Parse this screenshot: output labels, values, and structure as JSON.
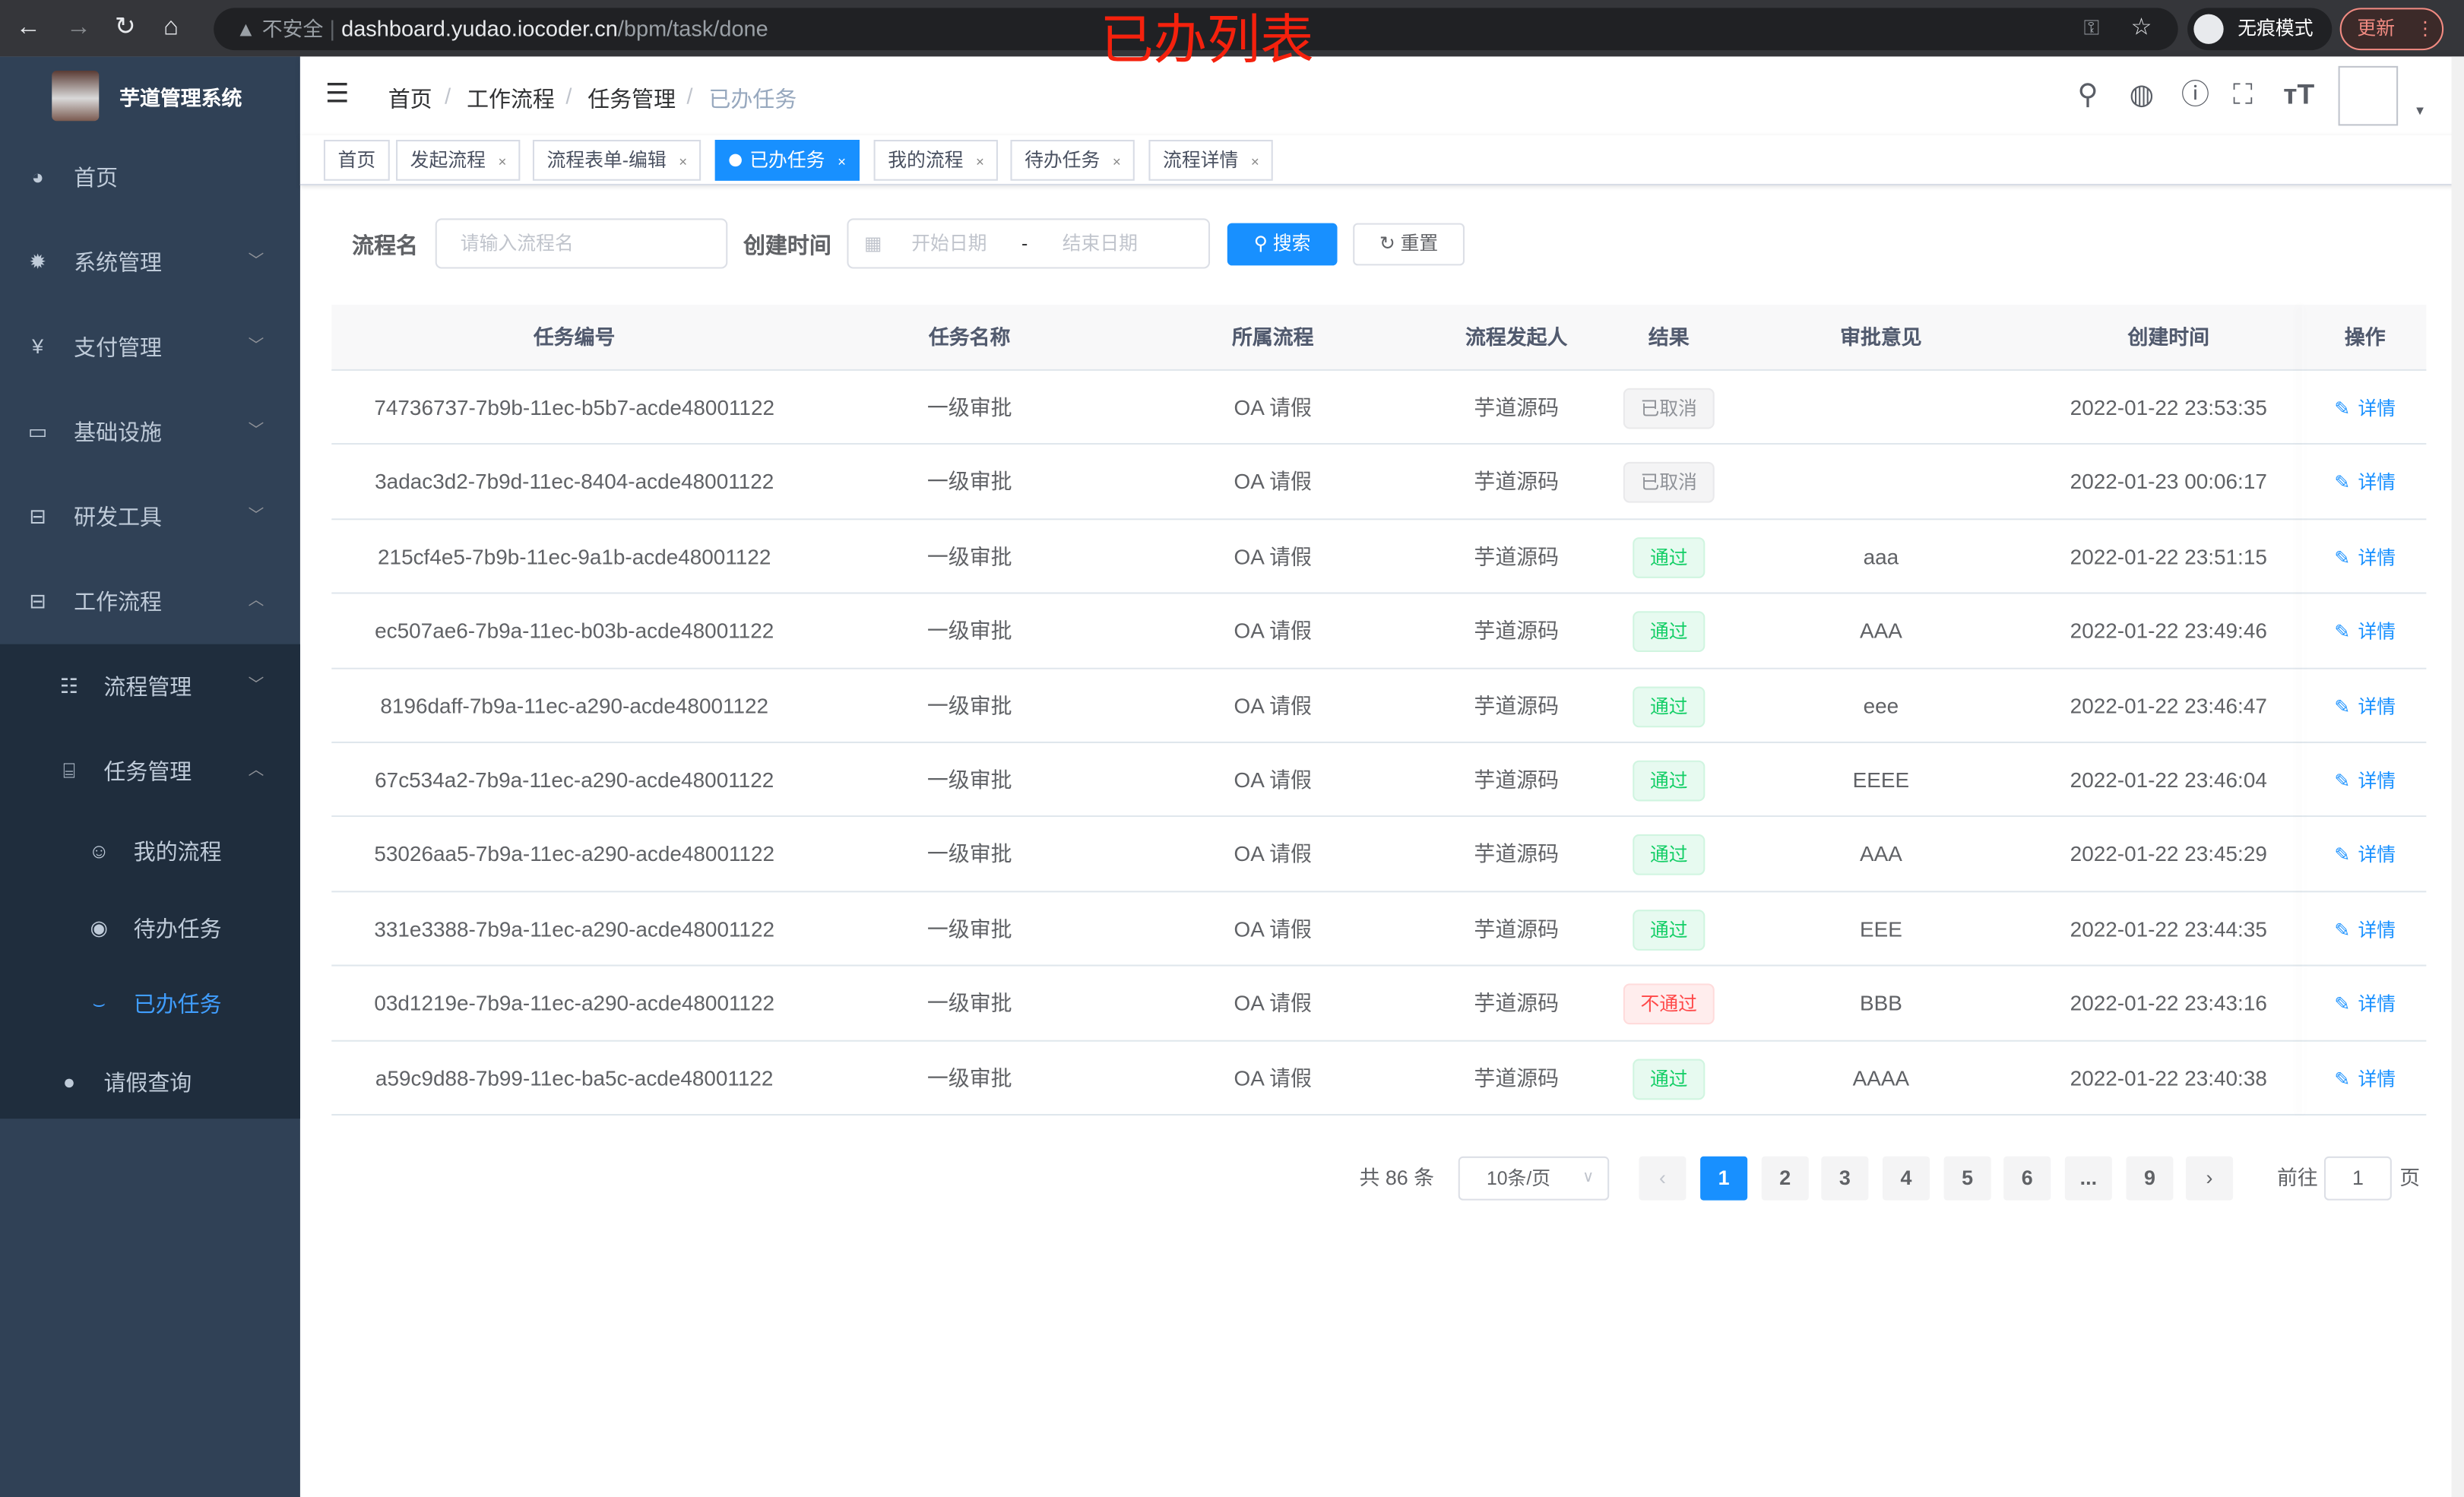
{
  "browser": {
    "insecure_label": "不安全",
    "url_host": "dashboard.yudao.iocoder.cn",
    "url_path": "/bpm/task/done",
    "incognito_label": "无痕模式",
    "update_label": "更新",
    "annotation": "已办列表"
  },
  "app": {
    "title": "芋道管理系统"
  },
  "sidebar": {
    "items": [
      {
        "label": "首页",
        "icon": "dashboard-icon"
      },
      {
        "label": "系统管理",
        "icon": "gear-icon"
      },
      {
        "label": "支付管理",
        "icon": "yen-icon"
      },
      {
        "label": "基础设施",
        "icon": "monitor-icon"
      },
      {
        "label": "研发工具",
        "icon": "toolbox-icon"
      },
      {
        "label": "工作流程",
        "icon": "toolbox-icon"
      }
    ],
    "workflow_children": [
      {
        "label": "流程管理",
        "icon": "list-icon"
      },
      {
        "label": "任务管理",
        "icon": "task-icon"
      }
    ],
    "task_children": [
      {
        "label": "我的流程",
        "icon": "face-icon"
      },
      {
        "label": "待办任务",
        "icon": "eye-icon"
      },
      {
        "label": "已办任务",
        "icon": "eye-closed-icon"
      }
    ],
    "leave_query": {
      "label": "请假查询",
      "icon": "user-icon"
    },
    "active": "已办任务",
    "active_color": "#409eff"
  },
  "breadcrumb": [
    "首页",
    "工作流程",
    "任务管理",
    "已办任务"
  ],
  "tags": [
    {
      "label": "首页",
      "closable": false
    },
    {
      "label": "发起流程",
      "closable": true
    },
    {
      "label": "流程表单-编辑",
      "closable": true
    },
    {
      "label": "已办任务",
      "closable": true,
      "active": true
    },
    {
      "label": "我的流程",
      "closable": true
    },
    {
      "label": "待办任务",
      "closable": true
    },
    {
      "label": "流程详情",
      "closable": true
    }
  ],
  "search": {
    "name_label": "流程名",
    "name_placeholder": "请输入流程名",
    "time_label": "创建时间",
    "start_placeholder": "开始日期",
    "range_sep": "-",
    "end_placeholder": "结束日期",
    "search_button": "搜索",
    "reset_button": "重置"
  },
  "table": {
    "columns": [
      "任务编号",
      "任务名称",
      "所属流程",
      "流程发起人",
      "结果",
      "审批意见",
      "创建时间",
      "操作"
    ],
    "rows": [
      {
        "id": "74736737-7b9b-11ec-b5b7-acde48001122",
        "name": "一级审批",
        "process": "OA 请假",
        "starter": "芋道源码",
        "result": "已取消",
        "status": "cancel",
        "opinion": "",
        "time": "2022-01-22 23:53:35",
        "action": "详情"
      },
      {
        "id": "3adac3d2-7b9d-11ec-8404-acde48001122",
        "name": "一级审批",
        "process": "OA 请假",
        "starter": "芋道源码",
        "result": "已取消",
        "status": "cancel",
        "opinion": "",
        "time": "2022-01-23 00:06:17",
        "action": "详情"
      },
      {
        "id": "215cf4e5-7b9b-11ec-9a1b-acde48001122",
        "name": "一级审批",
        "process": "OA 请假",
        "starter": "芋道源码",
        "result": "通过",
        "status": "pass",
        "opinion": "aaa",
        "time": "2022-01-22 23:51:15",
        "action": "详情"
      },
      {
        "id": "ec507ae6-7b9a-11ec-b03b-acde48001122",
        "name": "一级审批",
        "process": "OA 请假",
        "starter": "芋道源码",
        "result": "通过",
        "status": "pass",
        "opinion": "AAA",
        "time": "2022-01-22 23:49:46",
        "action": "详情"
      },
      {
        "id": "8196daff-7b9a-11ec-a290-acde48001122",
        "name": "一级审批",
        "process": "OA 请假",
        "starter": "芋道源码",
        "result": "通过",
        "status": "pass",
        "opinion": "eee",
        "time": "2022-01-22 23:46:47",
        "action": "详情"
      },
      {
        "id": "67c534a2-7b9a-11ec-a290-acde48001122",
        "name": "一级审批",
        "process": "OA 请假",
        "starter": "芋道源码",
        "result": "通过",
        "status": "pass",
        "opinion": "EEEE",
        "time": "2022-01-22 23:46:04",
        "action": "详情"
      },
      {
        "id": "53026aa5-7b9a-11ec-a290-acde48001122",
        "name": "一级审批",
        "process": "OA 请假",
        "starter": "芋道源码",
        "result": "通过",
        "status": "pass",
        "opinion": "AAA",
        "time": "2022-01-22 23:45:29",
        "action": "详情"
      },
      {
        "id": "331e3388-7b9a-11ec-a290-acde48001122",
        "name": "一级审批",
        "process": "OA 请假",
        "starter": "芋道源码",
        "result": "通过",
        "status": "pass",
        "opinion": "EEE",
        "time": "2022-01-22 23:44:35",
        "action": "详情"
      },
      {
        "id": "03d1219e-7b9a-11ec-a290-acde48001122",
        "name": "一级审批",
        "process": "OA 请假",
        "starter": "芋道源码",
        "result": "不通过",
        "status": "fail",
        "opinion": "BBB",
        "time": "2022-01-22 23:43:16",
        "action": "详情"
      },
      {
        "id": "a59c9d88-7b99-11ec-ba5c-acde48001122",
        "name": "一级审批",
        "process": "OA 请假",
        "starter": "芋道源码",
        "result": "通过",
        "status": "pass",
        "opinion": "AAAA",
        "time": "2022-01-22 23:40:38",
        "action": "详情"
      }
    ]
  },
  "pagination": {
    "total_label": "共 86 条",
    "page_size": "10条/页",
    "pages": [
      "1",
      "2",
      "3",
      "4",
      "5",
      "6",
      "...",
      "9"
    ],
    "current": "1",
    "goto_label": "前往",
    "goto_value": "1",
    "page_suffix": "页"
  },
  "colors": {
    "primary": "#1890ff",
    "sidebar": "#304156",
    "submenu": "#1f2d3d",
    "pass": "#13ce66",
    "fail": "#ff4949",
    "cancel": "#909399"
  }
}
